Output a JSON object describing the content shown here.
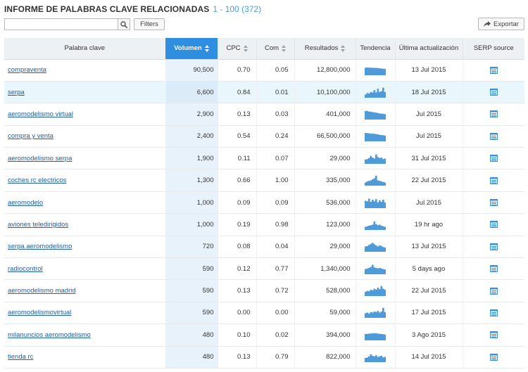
{
  "header": {
    "title": "INFORME DE PALABRAS CLAVE RELACIONADAS",
    "range": "1 - 100 (372)"
  },
  "toolbar": {
    "search_value": "",
    "search_icon": "search-icon",
    "filters_label": "Filters",
    "export_label": "Exportar",
    "export_icon": "share-arrow-icon"
  },
  "colors": {
    "accent": "#2e8ee0",
    "link": "#1f5ea8",
    "trend": "#4f9ad8",
    "row_highlight": "#e9f6fc",
    "title_range": "#4a9ed6"
  },
  "table": {
    "columns": [
      "Palabra clave",
      "Volumen",
      "CPC",
      "Com",
      "Resultados",
      "Tendencia",
      "Última actualización",
      "SERP source"
    ],
    "sorted_column": "Volumen",
    "rows": [
      {
        "keyword": "compraventa",
        "volume": "90,500",
        "cpc": "0.70",
        "com": "0.05",
        "results": "12,800,000",
        "trend": [
          0.72,
          0.74,
          0.72,
          0.72,
          0.7,
          0.7,
          0.7,
          0.68,
          0.66,
          0.64,
          0.62,
          0.6
        ],
        "updated": "13 Jul 2015",
        "serp_icon": "list-icon"
      },
      {
        "keyword": "serpa",
        "volume": "6,600",
        "cpc": "0.84",
        "com": "0.01",
        "results": "10,100,000",
        "trend": [
          0.3,
          0.45,
          0.4,
          0.55,
          0.5,
          0.72,
          0.5,
          0.85,
          0.55,
          0.62,
          0.95,
          0.55
        ],
        "updated": "18 Jul 2015",
        "serp_icon": "list-icon"
      },
      {
        "keyword": "aeromodelismo virtual",
        "volume": "2,900",
        "cpc": "0.13",
        "com": "0.03",
        "results": "401,000",
        "trend": [
          0.8,
          0.82,
          0.75,
          0.75,
          0.7,
          0.68,
          0.65,
          0.62,
          0.58,
          0.56,
          0.55,
          0.52
        ],
        "updated": "Jul 2015",
        "serp_icon": "list-icon"
      },
      {
        "keyword": "compra y venta",
        "volume": "2,400",
        "cpc": "0.54",
        "com": "0.24",
        "results": "66,500,000",
        "trend": [
          0.8,
          0.78,
          0.76,
          0.74,
          0.72,
          0.72,
          0.68,
          0.66,
          0.62,
          0.6,
          0.58,
          0.55
        ],
        "updated": "Jul 2015",
        "serp_icon": "list-icon"
      },
      {
        "keyword": "aeromodelismo serpa",
        "volume": "1,900",
        "cpc": "0.11",
        "com": "0.07",
        "results": "29,000",
        "trend": [
          0.4,
          0.45,
          0.55,
          0.75,
          0.6,
          0.5,
          0.9,
          0.65,
          0.55,
          0.6,
          0.45,
          0.5
        ],
        "updated": "31 Jul 2015",
        "serp_icon": "list-icon"
      },
      {
        "keyword": "coches rc electricos",
        "volume": "1,300",
        "cpc": "0.66",
        "com": "1.00",
        "results": "335,000",
        "trend": [
          0.3,
          0.4,
          0.45,
          0.5,
          0.6,
          0.7,
          0.95,
          0.5,
          0.45,
          0.4,
          0.35,
          0.3
        ],
        "updated": "22 Jul 2015",
        "serp_icon": "list-icon"
      },
      {
        "keyword": "aeromodelo",
        "volume": "1,000",
        "cpc": "0.09",
        "com": "0.09",
        "results": "536,000",
        "trend": [
          0.7,
          0.65,
          0.9,
          0.6,
          0.8,
          0.65,
          0.85,
          0.55,
          0.75,
          0.6,
          0.8,
          0.55
        ],
        "updated": "Jul 2015",
        "serp_icon": "list-icon"
      },
      {
        "keyword": "aviones teledirigidos",
        "volume": "1,000",
        "cpc": "0.19",
        "com": "0.98",
        "results": "123,000",
        "trend": [
          0.3,
          0.35,
          0.4,
          0.45,
          0.5,
          0.8,
          0.55,
          0.45,
          0.5,
          0.4,
          0.35,
          0.3
        ],
        "updated": "19 hr ago",
        "serp_icon": "list-icon"
      },
      {
        "keyword": "serpa aeromodelismo",
        "volume": "720",
        "cpc": "0.08",
        "com": "0.04",
        "results": "29,000",
        "trend": [
          0.5,
          0.55,
          0.65,
          0.75,
          0.85,
          0.7,
          0.6,
          0.5,
          0.6,
          0.55,
          0.45,
          0.4
        ],
        "updated": "13 Jul 2015",
        "serp_icon": "list-icon"
      },
      {
        "keyword": "radiocontrol",
        "volume": "590",
        "cpc": "0.12",
        "com": "0.77",
        "results": "1,340,000",
        "trend": [
          0.5,
          0.55,
          0.6,
          0.7,
          0.9,
          0.65,
          0.6,
          0.55,
          0.6,
          0.55,
          0.5,
          0.45
        ],
        "updated": "5 days ago",
        "serp_icon": "list-icon"
      },
      {
        "keyword": "aeromodelismo madrid",
        "volume": "590",
        "cpc": "0.13",
        "com": "0.72",
        "results": "528,000",
        "trend": [
          0.4,
          0.5,
          0.45,
          0.6,
          0.55,
          0.7,
          0.6,
          0.8,
          0.65,
          0.95,
          0.7,
          0.6
        ],
        "updated": "22 Jul 2015",
        "serp_icon": "list-icon"
      },
      {
        "keyword": "aeromodelismovirtual",
        "volume": "590",
        "cpc": "0.00",
        "com": "0.00",
        "results": "59,000",
        "trend": [
          0.45,
          0.5,
          0.4,
          0.55,
          0.5,
          0.6,
          0.55,
          0.65,
          0.5,
          0.6,
          0.95,
          0.55
        ],
        "updated": "17 Jul 2015",
        "serp_icon": "list-icon"
      },
      {
        "keyword": "milanuncios aeromodelismo",
        "volume": "480",
        "cpc": "0.10",
        "com": "0.02",
        "results": "394,000",
        "trend": [
          0.6,
          0.62,
          0.64,
          0.65,
          0.66,
          0.68,
          0.66,
          0.64,
          0.62,
          0.6,
          0.58,
          0.56
        ],
        "updated": "3 Ago 2015",
        "serp_icon": "list-icon"
      },
      {
        "keyword": "tienda rc",
        "volume": "480",
        "cpc": "0.13",
        "com": "0.79",
        "results": "822,000",
        "trend": [
          0.4,
          0.45,
          0.55,
          0.75,
          0.6,
          0.55,
          0.65,
          0.5,
          0.55,
          0.6,
          0.45,
          0.5
        ],
        "updated": "14 Jul 2015",
        "serp_icon": "list-icon"
      }
    ]
  }
}
